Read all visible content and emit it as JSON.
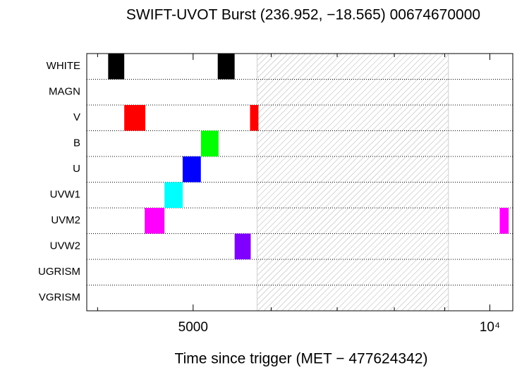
{
  "chart_data": {
    "type": "timeline",
    "title": "SWIFT-UVOT Burst (236.952, −18.565) 00674670000",
    "x_label": "Time since trigger (MET − 477624342)",
    "x_scale": "log",
    "xlim": [
      3900,
      10550
    ],
    "xticks": [
      5000,
      {
        "value": 10000,
        "label": "10⁴"
      }
    ],
    "xminorticks": [
      4000,
      6000,
      7000,
      8000,
      9000
    ],
    "categories": [
      "WHITE",
      "MAGN",
      "V",
      "B",
      "U",
      "UVW1",
      "UVM2",
      "UVW2",
      "UGRISM",
      "VGRISM"
    ],
    "series": [
      {
        "color": "#000000",
        "intervals": [
          [
            4100,
            4257
          ],
          [
            5296,
            5509
          ]
        ]
      },
      {
        "color": "#000000",
        "intervals": []
      },
      {
        "color": "#ff0000",
        "intervals": [
          [
            4257,
            4472
          ],
          [
            5711,
            5824
          ]
        ]
      },
      {
        "color": "#00ff00",
        "intervals": [
          [
            5091,
            5305
          ]
        ]
      },
      {
        "color": "#0000ff",
        "intervals": [
          [
            4879,
            5091
          ]
        ]
      },
      {
        "color": "#00ffff",
        "intervals": [
          [
            4676,
            4879
          ]
        ]
      },
      {
        "color": "#ff00ff",
        "intervals": [
          [
            4465,
            4676
          ],
          [
            10233,
            10448
          ]
        ]
      },
      {
        "color": "#8000ff",
        "intervals": [
          [
            5509,
            5720
          ]
        ]
      },
      {
        "color": "#000000",
        "intervals": []
      },
      {
        "color": "#000000",
        "intervals": []
      }
    ],
    "shaded_region": [
      5806,
      9077
    ]
  }
}
